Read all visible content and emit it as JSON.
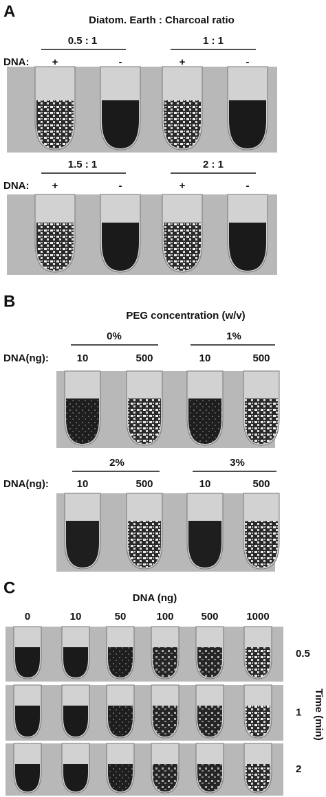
{
  "panels": [
    {
      "label": "A",
      "title": "Diatom. Earth : Charcoal ratio",
      "rows": [
        {
          "groups": [
            "0.5 : 1",
            "1 : 1"
          ],
          "row_label": "DNA:",
          "lanes": [
            "+",
            "-",
            "+",
            "-"
          ]
        },
        {
          "groups": [
            "1.5 : 1",
            "2 : 1"
          ],
          "row_label": "DNA:",
          "lanes": [
            "+",
            "-",
            "+",
            "-"
          ]
        }
      ]
    },
    {
      "label": "B",
      "title": "PEG concentration (w/v)",
      "rows": [
        {
          "groups": [
            "0%",
            "1%"
          ],
          "row_label": "DNA(ng):",
          "lanes": [
            "10",
            "500",
            "10",
            "500"
          ]
        },
        {
          "groups": [
            "2%",
            "3%"
          ],
          "row_label": "DNA(ng):",
          "lanes": [
            "10",
            "500",
            "10",
            "500"
          ]
        }
      ]
    },
    {
      "label": "C",
      "title": "DNA (ng)",
      "lanes": [
        "0",
        "10",
        "50",
        "100",
        "500",
        "1000"
      ],
      "axis_label": "Time (min)",
      "times": [
        "0.5",
        "1",
        "2"
      ]
    }
  ]
}
